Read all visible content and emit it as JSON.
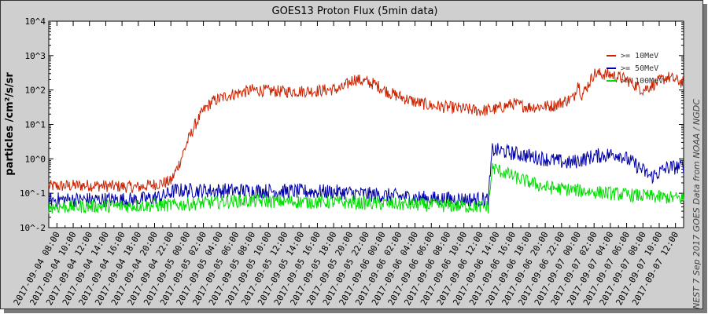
{
  "chart_data": {
    "type": "line",
    "title": "GOES13 Proton Flux (5min data)",
    "ylabel": "particles /cm²/s/sr",
    "yscale": "log",
    "ylim": [
      0.01,
      10000
    ],
    "y_tick_labels": [
      "10^4",
      "10^3",
      "10^2",
      "10^1",
      "10^0",
      "10^-1",
      "10^-2"
    ],
    "grid": false,
    "legend_position": "top-right",
    "x_tick_labels": [
      "2017-09-04 08:00",
      "2017-09-04 10:00",
      "2017-09-04 12:00",
      "2017-09-04 14:00",
      "2017-09-04 16:00",
      "2017-09-04 18:00",
      "2017-09-04 20:00",
      "2017-09-04 22:00",
      "2017-09-05 00:00",
      "2017-09-05 02:00",
      "2017-09-05 04:00",
      "2017-09-05 06:00",
      "2017-09-05 08:00",
      "2017-09-05 10:00",
      "2017-09-05 12:00",
      "2017-09-05 14:00",
      "2017-09-05 16:00",
      "2017-09-05 18:00",
      "2017-09-05 20:00",
      "2017-09-05 22:00",
      "2017-09-06 00:00",
      "2017-09-06 02:00",
      "2017-09-06 04:00",
      "2017-09-06 06:00",
      "2017-09-06 08:00",
      "2017-09-06 10:00",
      "2017-09-06 12:00",
      "2017-09-06 14:00",
      "2017-09-06 16:00",
      "2017-09-06 18:00",
      "2017-09-06 20:00",
      "2017-09-06 22:00",
      "2017-09-07 00:00",
      "2017-09-07 02:00",
      "2017-09-07 04:00",
      "2017-09-07 06:00",
      "2017-09-07 08:00",
      "2017-09-07 10:00",
      "2017-09-07 12:00"
    ],
    "x_range": [
      "2017-09-04 07:00",
      "2017-09-07 13:00"
    ],
    "series": [
      {
        "name": ">= 10MeV",
        "color": "#cc2200",
        "noise": 0.18,
        "x": [
          "2017-09-04 07:00",
          "2017-09-04 12:00",
          "2017-09-04 18:00",
          "2017-09-04 22:00",
          "2017-09-04 23:00",
          "2017-09-05 00:00",
          "2017-09-05 01:00",
          "2017-09-05 02:00",
          "2017-09-05 03:00",
          "2017-09-05 05:00",
          "2017-09-05 08:00",
          "2017-09-05 12:00",
          "2017-09-05 16:00",
          "2017-09-05 19:00",
          "2017-09-05 20:30",
          "2017-09-05 23:00",
          "2017-09-06 01:00",
          "2017-09-06 02:30",
          "2017-09-06 04:00",
          "2017-09-06 06:00",
          "2017-09-06 09:00",
          "2017-09-06 12:00",
          "2017-09-06 14:00",
          "2017-09-06 16:00",
          "2017-09-06 18:00",
          "2017-09-06 21:00",
          "2017-09-06 23:30",
          "2017-09-07 00:00",
          "2017-09-07 00:30",
          "2017-09-07 01:00",
          "2017-09-07 02:00",
          "2017-09-07 04:00",
          "2017-09-07 06:00",
          "2017-09-07 08:00",
          "2017-09-07 10:00",
          "2017-09-07 11:00",
          "2017-09-07 13:00"
        ],
        "y": [
          0.16,
          0.17,
          0.15,
          0.22,
          0.7,
          3,
          10,
          25,
          45,
          70,
          100,
          90,
          95,
          110,
          210,
          150,
          80,
          60,
          45,
          35,
          30,
          25,
          28,
          40,
          32,
          35,
          60,
          170,
          70,
          110,
          300,
          280,
          200,
          100,
          180,
          240,
          160
        ]
      },
      {
        "name": ">= 50MeV",
        "color": "#0000aa",
        "noise": 0.22,
        "x": [
          "2017-09-04 07:00",
          "2017-09-04 18:00",
          "2017-09-04 21:00",
          "2017-09-04 22:30",
          "2017-09-05 06:00",
          "2017-09-05 18:00",
          "2017-09-06 06:00",
          "2017-09-06 13:00",
          "2017-09-06 13:30",
          "2017-09-06 14:30",
          "2017-09-06 18:00",
          "2017-09-06 20:00",
          "2017-09-06 23:00",
          "2017-09-07 02:00",
          "2017-09-07 05:00",
          "2017-09-07 07:00",
          "2017-09-07 09:00",
          "2017-09-07 11:00",
          "2017-09-07 13:00"
        ],
        "y": [
          0.065,
          0.065,
          0.08,
          0.12,
          0.12,
          0.11,
          0.07,
          0.065,
          1.8,
          1.7,
          1.2,
          1.0,
          0.75,
          1.2,
          1.4,
          0.7,
          0.3,
          0.55,
          0.6
        ]
      },
      {
        "name": ">= 100MeV",
        "color": "#00dd00",
        "noise": 0.2,
        "x": [
          "2017-09-04 07:00",
          "2017-09-04 22:00",
          "2017-09-05 06:00",
          "2017-09-05 18:00",
          "2017-09-06 06:00",
          "2017-09-06 13:00",
          "2017-09-06 13:30",
          "2017-09-06 17:00",
          "2017-09-06 20:00",
          "2017-09-07 00:00",
          "2017-09-07 06:00",
          "2017-09-07 13:00"
        ],
        "y": [
          0.04,
          0.045,
          0.06,
          0.055,
          0.045,
          0.04,
          0.55,
          0.25,
          0.15,
          0.12,
          0.09,
          0.07
        ]
      }
    ]
  },
  "credit": "NEST  7 Sep 2017    GOES Data from NOAA / NGDC"
}
